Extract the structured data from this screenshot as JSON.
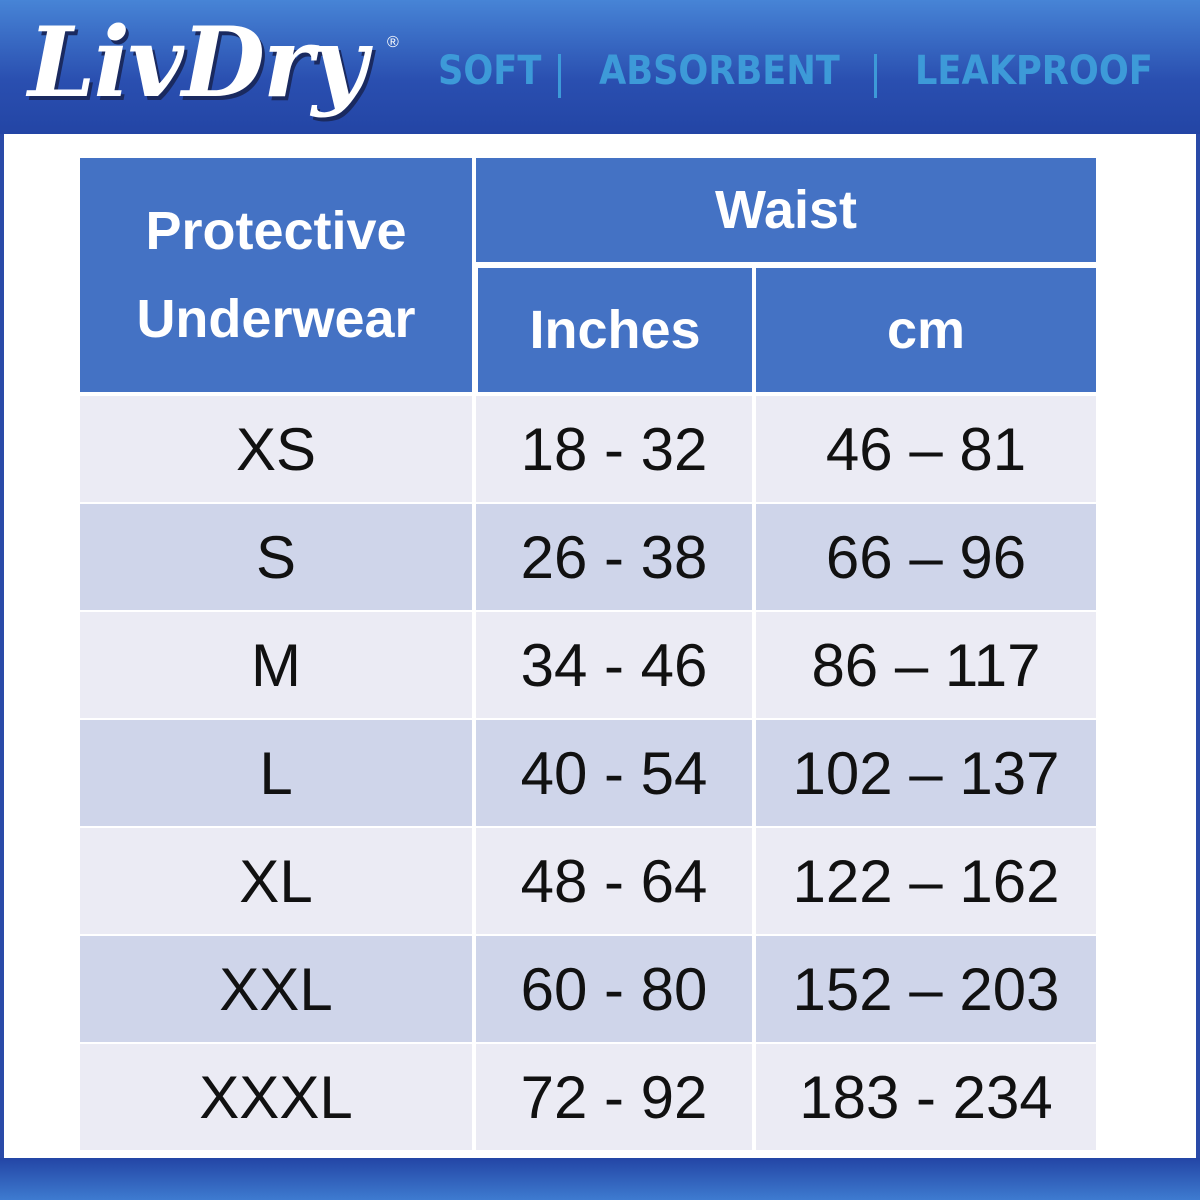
{
  "brand": {
    "name": "LivDry",
    "registered": "®"
  },
  "tagline": [
    "SOFT",
    "ABSORBENT",
    "LEAKPROOF"
  ],
  "table": {
    "header": {
      "product": "Protective Underwear",
      "group": "Waist",
      "columns": [
        "Inches",
        "cm"
      ]
    },
    "rows": [
      {
        "size": "XS",
        "inches": "18 - 32",
        "cm": "46 – 81"
      },
      {
        "size": "S",
        "inches": "26 - 38",
        "cm": "66 – 96"
      },
      {
        "size": "M",
        "inches": "34 - 46",
        "cm": "86 – 117"
      },
      {
        "size": "L",
        "inches": "40 - 54",
        "cm": "102 – 137"
      },
      {
        "size": "XL",
        "inches": "48 - 64",
        "cm": "122 – 162"
      },
      {
        "size": "XXL",
        "inches": "60 - 80",
        "cm": "152 – 203"
      },
      {
        "size": "XXXL",
        "inches": "72 - 92",
        "cm": "183 - 234"
      }
    ]
  },
  "colors": {
    "header_blue": "#4472c4",
    "row_light": "#ebebf4",
    "row_dark": "#cfd5ea",
    "tagline": "#3d9ad8"
  }
}
